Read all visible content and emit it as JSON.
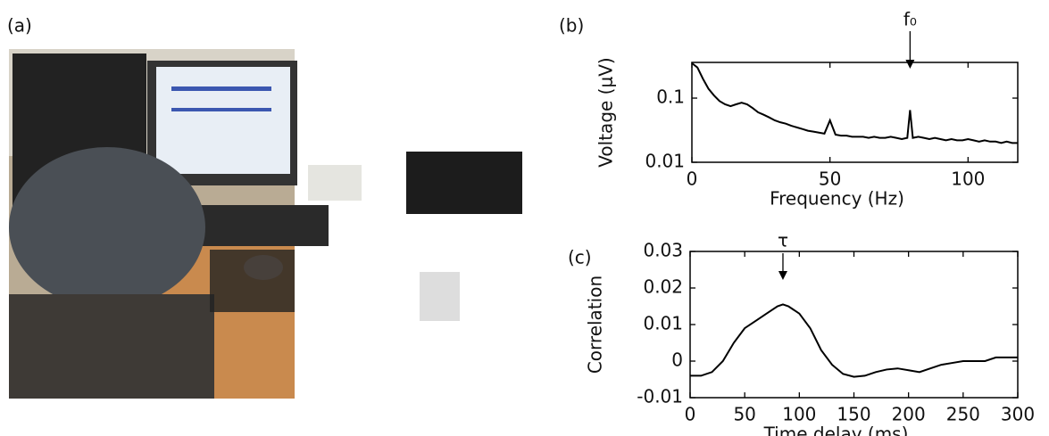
{
  "panel_labels": [
    "(a)",
    "(b)",
    "(c)"
  ],
  "chart_data": [
    {
      "type": "line",
      "x_label": "Frequency (Hz)",
      "y_label": "Voltage (μV)",
      "log_y": true,
      "color": "#000000",
      "x": [
        0,
        2,
        4,
        6,
        8,
        10,
        12,
        14,
        16,
        18,
        20,
        22,
        24,
        26,
        28,
        30,
        32,
        34,
        36,
        38,
        40,
        42,
        44,
        46,
        48,
        50,
        52,
        54,
        56,
        58,
        60,
        62,
        64,
        66,
        68,
        70,
        72,
        74,
        76,
        78,
        79,
        80,
        82,
        84,
        86,
        88,
        90,
        92,
        94,
        96,
        98,
        100,
        102,
        104,
        106,
        108,
        110,
        112,
        114,
        116,
        118
      ],
      "values": [
        0.35,
        0.3,
        0.2,
        0.14,
        0.11,
        0.09,
        0.08,
        0.075,
        0.08,
        0.085,
        0.08,
        0.07,
        0.06,
        0.055,
        0.05,
        0.045,
        0.042,
        0.04,
        0.037,
        0.035,
        0.033,
        0.031,
        0.03,
        0.029,
        0.028,
        0.045,
        0.027,
        0.026,
        0.026,
        0.025,
        0.025,
        0.025,
        0.024,
        0.025,
        0.024,
        0.024,
        0.025,
        0.024,
        0.023,
        0.024,
        0.065,
        0.024,
        0.025,
        0.024,
        0.023,
        0.024,
        0.023,
        0.022,
        0.023,
        0.022,
        0.022,
        0.023,
        0.022,
        0.021,
        0.022,
        0.021,
        0.021,
        0.02,
        0.021,
        0.02,
        0.02
      ],
      "xlim": [
        0,
        118
      ],
      "xticks": [
        0,
        50,
        100
      ],
      "ylim": [
        0.01,
        0.36
      ],
      "yticks": [
        0.01,
        0.1
      ],
      "annotation": {
        "text": "f₀",
        "x": 79
      }
    },
    {
      "type": "line",
      "x_label": "Time delay (ms)",
      "y_label": "Correlation",
      "color": "#000000",
      "x": [
        0,
        10,
        20,
        30,
        40,
        50,
        60,
        70,
        80,
        85,
        90,
        100,
        110,
        120,
        130,
        140,
        150,
        160,
        170,
        180,
        190,
        200,
        210,
        220,
        230,
        240,
        250,
        260,
        270,
        280,
        290,
        300
      ],
      "values": [
        -0.004,
        -0.004,
        -0.003,
        0.0,
        0.005,
        0.009,
        0.011,
        0.013,
        0.015,
        0.0155,
        0.015,
        0.013,
        0.009,
        0.003,
        -0.001,
        -0.0035,
        -0.0043,
        -0.004,
        -0.003,
        -0.0023,
        -0.002,
        -0.0025,
        -0.003,
        -0.002,
        -0.001,
        -0.0005,
        0,
        0,
        0,
        0.001,
        0.001,
        0.001
      ],
      "xlim": [
        0,
        300
      ],
      "xticks": [
        0,
        50,
        100,
        150,
        200,
        250,
        300
      ],
      "ylim": [
        -0.01,
        0.03
      ],
      "yticks": [
        -0.01,
        0,
        0.01,
        0.02,
        0.03
      ],
      "annotation": {
        "text": "τ",
        "x": 85
      }
    }
  ]
}
